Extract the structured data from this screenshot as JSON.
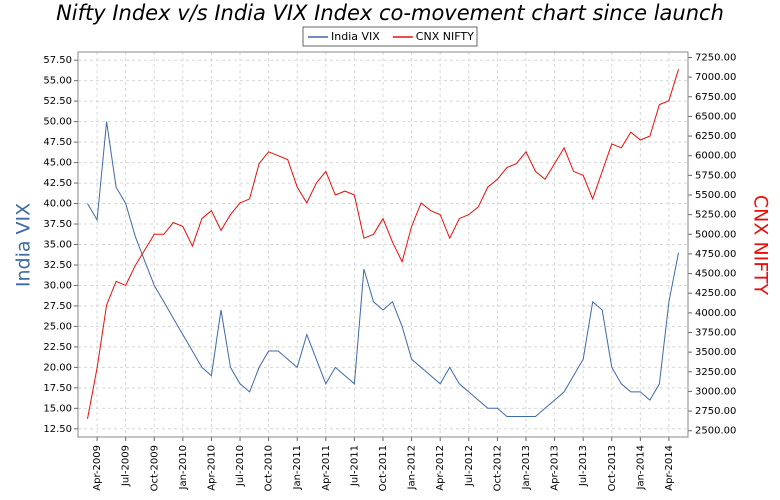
{
  "chart_data": {
    "type": "line",
    "title": "Nifty Index v/s India VIX Index co-movement chart since launch",
    "ylabel": "India VIX",
    "y2label": "CNX NIFTY",
    "grid": true,
    "legend": "top",
    "x": [
      "2009-03",
      "2009-04",
      "2009-05",
      "2009-06",
      "2009-07",
      "2009-08",
      "2009-09",
      "2009-10",
      "2009-11",
      "2009-12",
      "2010-01",
      "2010-02",
      "2010-03",
      "2010-04",
      "2010-05",
      "2010-06",
      "2010-07",
      "2010-08",
      "2010-09",
      "2010-10",
      "2010-11",
      "2010-12",
      "2011-01",
      "2011-02",
      "2011-03",
      "2011-04",
      "2011-05",
      "2011-06",
      "2011-07",
      "2011-08",
      "2011-09",
      "2011-10",
      "2011-11",
      "2011-12",
      "2012-01",
      "2012-02",
      "2012-03",
      "2012-04",
      "2012-05",
      "2012-06",
      "2012-07",
      "2012-08",
      "2012-09",
      "2012-10",
      "2012-11",
      "2012-12",
      "2013-01",
      "2013-02",
      "2013-03",
      "2013-04",
      "2013-05",
      "2013-06",
      "2013-07",
      "2013-08",
      "2013-09",
      "2013-10",
      "2013-11",
      "2013-12",
      "2014-01",
      "2014-02",
      "2014-03",
      "2014-04",
      "2014-05"
    ],
    "xlim": [
      "2009-02",
      "2014-06"
    ],
    "xticks": [
      {
        "value": "2009-04",
        "label": "Apr-2009"
      },
      {
        "value": "2009-07",
        "label": "Jul-2009"
      },
      {
        "value": "2009-10",
        "label": "Oct-2009"
      },
      {
        "value": "2010-01",
        "label": "Jan-2010"
      },
      {
        "value": "2010-04",
        "label": "Apr-2010"
      },
      {
        "value": "2010-07",
        "label": "Jul-2010"
      },
      {
        "value": "2010-10",
        "label": "Oct-2010"
      },
      {
        "value": "2011-01",
        "label": "Jan-2011"
      },
      {
        "value": "2011-04",
        "label": "Apr-2011"
      },
      {
        "value": "2011-07",
        "label": "Jul-2011"
      },
      {
        "value": "2011-10",
        "label": "Oct-2011"
      },
      {
        "value": "2012-01",
        "label": "Jan-2012"
      },
      {
        "value": "2012-04",
        "label": "Apr-2012"
      },
      {
        "value": "2012-07",
        "label": "Jul-2012"
      },
      {
        "value": "2012-10",
        "label": "Oct-2012"
      },
      {
        "value": "2013-01",
        "label": "Jan-2013"
      },
      {
        "value": "2013-04",
        "label": "Apr-2013"
      },
      {
        "value": "2013-07",
        "label": "Jul-2013"
      },
      {
        "value": "2013-10",
        "label": "Oct-2013"
      },
      {
        "value": "2014-01",
        "label": "Jan-2014"
      },
      {
        "value": "2014-04",
        "label": "Apr-2014"
      }
    ],
    "ylim": [
      11.5,
      58.5
    ],
    "yticks": [
      {
        "value": 12.5,
        "label": "12.50"
      },
      {
        "value": 15,
        "label": "15.00"
      },
      {
        "value": 17.5,
        "label": "17.50"
      },
      {
        "value": 20,
        "label": "20.00"
      },
      {
        "value": 22.5,
        "label": "22.50"
      },
      {
        "value": 25,
        "label": "25.00"
      },
      {
        "value": 27.5,
        "label": "27.50"
      },
      {
        "value": 30,
        "label": "30.00"
      },
      {
        "value": 32.5,
        "label": "32.50"
      },
      {
        "value": 35,
        "label": "35.00"
      },
      {
        "value": 37.5,
        "label": "37.50"
      },
      {
        "value": 40,
        "label": "40.00"
      },
      {
        "value": 42.5,
        "label": "42.50"
      },
      {
        "value": 45,
        "label": "45.00"
      },
      {
        "value": 47.5,
        "label": "47.50"
      },
      {
        "value": 50,
        "label": "50.00"
      },
      {
        "value": 52.5,
        "label": "52.50"
      },
      {
        "value": 55,
        "label": "55.00"
      },
      {
        "value": 57.5,
        "label": "57.50"
      }
    ],
    "y2lim": [
      2420,
      7320
    ],
    "y2ticks": [
      {
        "value": 2500,
        "label": "2500.00"
      },
      {
        "value": 2750,
        "label": "2750.00"
      },
      {
        "value": 3000,
        "label": "3000.00"
      },
      {
        "value": 3250,
        "label": "3250.00"
      },
      {
        "value": 3500,
        "label": "3500.00"
      },
      {
        "value": 3750,
        "label": "3750.00"
      },
      {
        "value": 4000,
        "label": "4000.00"
      },
      {
        "value": 4250,
        "label": "4250.00"
      },
      {
        "value": 4500,
        "label": "4500.00"
      },
      {
        "value": 4750,
        "label": "4750.00"
      },
      {
        "value": 5000,
        "label": "5000.00"
      },
      {
        "value": 5250,
        "label": "5250.00"
      },
      {
        "value": 5500,
        "label": "5500.00"
      },
      {
        "value": 5750,
        "label": "5750.00"
      },
      {
        "value": 6000,
        "label": "6000.00"
      },
      {
        "value": 6250,
        "label": "6250.00"
      },
      {
        "value": 6500,
        "label": "6500.00"
      },
      {
        "value": 6750,
        "label": "6750.00"
      },
      {
        "value": 7000,
        "label": "7000.00"
      },
      {
        "value": 7250,
        "label": "7250.00"
      }
    ],
    "series": [
      {
        "name": "India VIX",
        "color": "#3e6aa8",
        "values": [
          40,
          38,
          50,
          42,
          40,
          36,
          33,
          30,
          28,
          26,
          24,
          22,
          20,
          19,
          27,
          20,
          18,
          17,
          20,
          22,
          22,
          21,
          20,
          24,
          21,
          18,
          20,
          19,
          18,
          32,
          28,
          27,
          28,
          25,
          21,
          20,
          19,
          18,
          20,
          18,
          17,
          16,
          15,
          15,
          14,
          14,
          14,
          14,
          15,
          16,
          17,
          19,
          21,
          28,
          27,
          20,
          18,
          17,
          17,
          16,
          18,
          28,
          34
        ]
      },
      {
        "name": "CNX NIFTY",
        "color": "#e8100c",
        "axis": "y2",
        "values": [
          2650,
          3300,
          4100,
          4400,
          4350,
          4600,
          4800,
          5000,
          5000,
          5150,
          5100,
          4850,
          5200,
          5300,
          5050,
          5250,
          5400,
          5450,
          5900,
          6050,
          6000,
          5950,
          5600,
          5400,
          5650,
          5800,
          5500,
          5550,
          5500,
          4950,
          5000,
          5200,
          4900,
          4650,
          5100,
          5400,
          5300,
          5250,
          4950,
          5200,
          5250,
          5350,
          5600,
          5700,
          5850,
          5900,
          6050,
          5800,
          5700,
          5900,
          6100,
          5800,
          5750,
          5450,
          5800,
          6150,
          6100,
          6300,
          6200,
          6250,
          6650,
          6700,
          7100
        ]
      }
    ]
  }
}
